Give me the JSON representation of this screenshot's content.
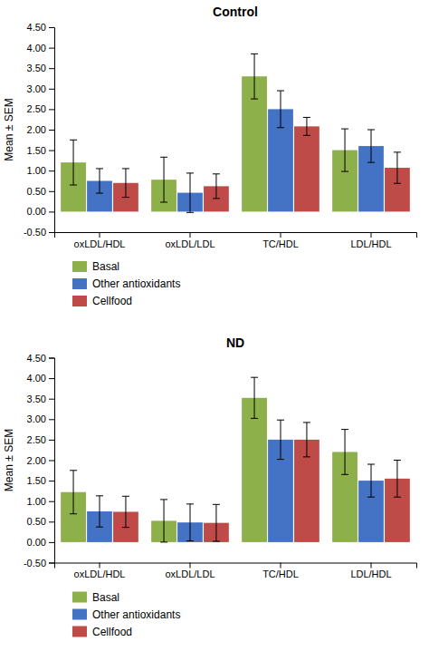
{
  "chart_data": [
    {
      "type": "bar",
      "title": "Control",
      "categories": [
        "oxLDL/HDL",
        "oxLDL/LDL",
        "TC/HDL",
        "LDL/HDL"
      ],
      "ylabel": "Mean ± SEM",
      "ylim": [
        -0.5,
        4.5
      ],
      "yticks": [
        {
          "value": -0.5,
          "label": "-0.50"
        },
        {
          "value": 0,
          "label": "0.00"
        },
        {
          "value": 0.5,
          "label": "0.50"
        },
        {
          "value": 1,
          "label": "1.00"
        },
        {
          "value": 1.5,
          "label": "1.50"
        },
        {
          "value": 2,
          "label": "2.00"
        },
        {
          "value": 2.5,
          "label": "2.50"
        },
        {
          "value": 3,
          "label": "3.00"
        },
        {
          "value": 3.5,
          "label": "3.50"
        },
        {
          "value": 4,
          "label": "4.00"
        },
        {
          "value": 4.5,
          "label": "4.50"
        }
      ],
      "grid": false,
      "legend": "bottom",
      "series": [
        {
          "name": "Basal",
          "color": "#8DB04A",
          "values": [
            1.2,
            0.78,
            3.3,
            1.5
          ],
          "errors": [
            0.55,
            0.55,
            0.55,
            0.52
          ]
        },
        {
          "name": "Other antioxidants",
          "color": "#4472C4",
          "values": [
            0.75,
            0.46,
            2.5,
            1.6
          ],
          "errors": [
            0.3,
            0.48,
            0.45,
            0.4
          ]
        },
        {
          "name": "Cellfood",
          "color": "#BE4B48",
          "values": [
            0.7,
            0.62,
            2.08,
            1.07
          ],
          "errors": [
            0.35,
            0.3,
            0.22,
            0.38
          ]
        }
      ]
    },
    {
      "type": "bar",
      "title": "ND",
      "categories": [
        "oxLDL/HDL",
        "oxLDL/LDL",
        "TC/HDL",
        "LDL/HDL"
      ],
      "ylabel": "Mean ± SEM",
      "ylim": [
        -0.5,
        4.5
      ],
      "yticks": [
        {
          "value": -0.5,
          "label": "-0.50"
        },
        {
          "value": 0,
          "label": "0.00"
        },
        {
          "value": 0.5,
          "label": "0.50"
        },
        {
          "value": 1,
          "label": "1.00"
        },
        {
          "value": 1.5,
          "label": "1.50"
        },
        {
          "value": 2,
          "label": "2.00"
        },
        {
          "value": 2.5,
          "label": "2.50"
        },
        {
          "value": 3,
          "label": "3.00"
        },
        {
          "value": 3.5,
          "label": "3.50"
        },
        {
          "value": 4,
          "label": "4.00"
        },
        {
          "value": 4.5,
          "label": "4.50"
        }
      ],
      "grid": false,
      "legend": "bottom",
      "series": [
        {
          "name": "Basal",
          "color": "#8DB04A",
          "values": [
            1.22,
            0.52,
            3.52,
            2.2
          ],
          "errors": [
            0.53,
            0.52,
            0.5,
            0.55
          ]
        },
        {
          "name": "Other antioxidants",
          "color": "#4472C4",
          "values": [
            0.75,
            0.48,
            2.5,
            1.5
          ],
          "errors": [
            0.38,
            0.45,
            0.48,
            0.4
          ]
        },
        {
          "name": "Cellfood",
          "color": "#BE4B48",
          "values": [
            0.74,
            0.47,
            2.5,
            1.55
          ],
          "errors": [
            0.38,
            0.45,
            0.42,
            0.45
          ]
        }
      ]
    }
  ]
}
